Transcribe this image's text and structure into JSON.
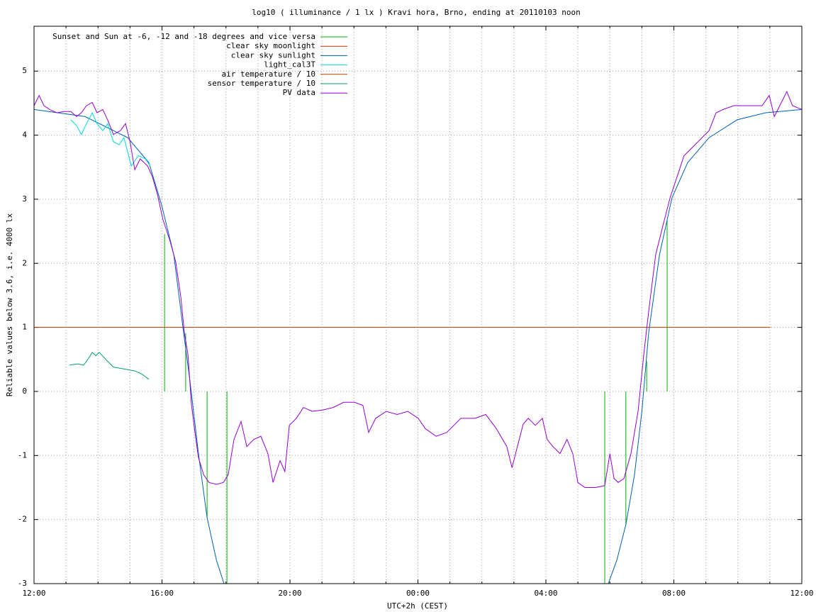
{
  "chart_data": {
    "type": "line",
    "title": "log10 ( illuminance / 1 lx ) Kravi hora, Brno, ending at 20110103 noon",
    "xlabel": "UTC+2h (CEST)",
    "ylabel": "Reliable values below 3.6, i.e. 4000 lx",
    "xlim": [
      0,
      24
    ],
    "ylim": [
      -3,
      5.7
    ],
    "xticks": [
      {
        "value": 0,
        "label": "12:00"
      },
      {
        "value": 4,
        "label": "16:00"
      },
      {
        "value": 8,
        "label": "20:00"
      },
      {
        "value": 12,
        "label": "00:00"
      },
      {
        "value": 16,
        "label": "04:00"
      },
      {
        "value": 20,
        "label": "08:00"
      },
      {
        "value": 24,
        "label": "12:00"
      }
    ],
    "xminorticks": [
      1,
      2,
      3,
      5,
      6,
      7,
      9,
      10,
      11,
      13,
      14,
      15,
      17,
      18,
      19,
      21,
      22,
      23
    ],
    "yticks": [
      -3,
      -2,
      -1,
      0,
      1,
      2,
      3,
      4,
      5
    ],
    "grid": true,
    "legend": "top-left",
    "series": [
      {
        "name": "Sunset and Sun at -6, -12 and -18 degrees and vice versa",
        "color": "#00b000",
        "style": "impulses",
        "x": [
          4.08,
          4.74,
          5.41,
          6.03,
          17.84,
          18.5,
          19.15,
          19.79
        ],
        "values": [
          2.46,
          0.91,
          -1.97,
          -3,
          -3,
          -2.08,
          0.47,
          2.68
        ]
      },
      {
        "name": "clear sky moonlight",
        "color": "#c03000",
        "style": "line",
        "x": [
          0,
          23.02
        ],
        "values": [
          1,
          1
        ]
      },
      {
        "name": "clear sky sunlight",
        "color": "#0060ad",
        "style": "line",
        "x": [
          0,
          1.6,
          2.93,
          3.59,
          3.99,
          4.37,
          4.65,
          4.88,
          5.14,
          5.41,
          5.7,
          5.94,
          12,
          17.95,
          18.22,
          18.5,
          18.77,
          19.0,
          19.21,
          19.55,
          19.94,
          20.43,
          21.1,
          21.98,
          22.87,
          24
        ],
        "values": [
          4.4,
          4.29,
          3.96,
          3.57,
          2.91,
          2.13,
          1.02,
          0.14,
          -0.97,
          -1.97,
          -2.63,
          -3,
          null,
          -3,
          -2.63,
          -2.08,
          -1.3,
          -0.31,
          0.91,
          2.13,
          3.02,
          3.57,
          3.96,
          4.24,
          4.35,
          4.4
        ]
      },
      {
        "name": "light_cal3T",
        "color": "#00dddd",
        "style": "line",
        "x": [
          1.15,
          1.33,
          1.48,
          1.64,
          1.82,
          1.97,
          2.15,
          2.3,
          2.48,
          2.66,
          2.81,
          3.04,
          3.26,
          3.48,
          3.63
        ],
        "values": [
          4.24,
          4.15,
          4.01,
          4.18,
          4.35,
          4.18,
          4.07,
          4.18,
          3.9,
          3.85,
          3.96,
          3.52,
          3.68,
          3.63,
          3.52
        ]
      },
      {
        "name": "air temperature / 10",
        "color": "#c04000",
        "style": "line",
        "x": [],
        "values": []
      },
      {
        "name": "sensor temperature / 10",
        "color": "#00a070",
        "style": "line",
        "x": [
          1.11,
          1.37,
          1.55,
          1.71,
          1.82,
          1.93,
          2.04,
          2.26,
          2.48,
          2.81,
          3.15,
          3.37,
          3.59
        ],
        "values": [
          0.41,
          0.43,
          0.41,
          0.52,
          0.61,
          0.56,
          0.61,
          0.49,
          0.38,
          0.35,
          0.32,
          0.27,
          0.19
        ]
      },
      {
        "name": "PV data",
        "color": "#9400d3",
        "style": "line",
        "x": [
          0,
          0.16,
          0.31,
          0.49,
          0.71,
          0.93,
          1.15,
          1.33,
          1.48,
          1.64,
          1.82,
          1.97,
          2.15,
          2.3,
          2.48,
          2.7,
          2.86,
          3.0,
          3.15,
          3.32,
          3.55,
          3.7,
          3.86,
          4.03,
          4.25,
          4.43,
          4.59,
          4.7,
          4.81,
          4.92,
          5.03,
          5.14,
          5.3,
          5.47,
          5.7,
          5.92,
          6.07,
          6.25,
          6.47,
          6.65,
          6.87,
          7.09,
          7.31,
          7.47,
          7.69,
          7.84,
          7.98,
          8.2,
          8.42,
          8.69,
          9.02,
          9.35,
          9.68,
          10.02,
          10.28,
          10.46,
          10.68,
          11.01,
          11.35,
          11.68,
          12.01,
          12.23,
          12.57,
          12.9,
          13.34,
          13.79,
          14.12,
          14.45,
          14.78,
          14.94,
          15.11,
          15.29,
          15.45,
          15.67,
          15.89,
          16.04,
          16.22,
          16.44,
          16.66,
          16.84,
          17.0,
          17.22,
          17.55,
          17.84,
          18.0,
          18.13,
          18.26,
          18.44,
          18.66,
          18.88,
          19.06,
          19.21,
          19.43,
          19.65,
          19.88,
          20.1,
          20.32,
          20.54,
          20.88,
          21.1,
          21.32,
          21.54,
          21.87,
          22.43,
          22.76,
          22.98,
          23.14,
          23.31,
          23.53,
          23.71,
          24
        ],
        "values": [
          4.46,
          4.62,
          4.46,
          4.4,
          4.35,
          4.37,
          4.37,
          4.29,
          4.35,
          4.46,
          4.51,
          4.35,
          4.4,
          4.24,
          4.01,
          4.07,
          4.18,
          3.9,
          3.46,
          3.63,
          3.52,
          3.35,
          3.07,
          2.68,
          2.35,
          2.02,
          1.47,
          0.91,
          0.58,
          -0.2,
          -0.64,
          -1.03,
          -1.3,
          -1.42,
          -1.45,
          -1.42,
          -1.3,
          -0.75,
          -0.47,
          -0.86,
          -0.75,
          -0.7,
          -0.97,
          -1.42,
          -1.08,
          -1.25,
          -0.53,
          -0.42,
          -0.25,
          -0.31,
          -0.29,
          -0.25,
          -0.17,
          -0.17,
          -0.22,
          -0.64,
          -0.42,
          -0.31,
          -0.36,
          -0.31,
          -0.42,
          -0.58,
          -0.7,
          -0.64,
          -0.42,
          -0.42,
          -0.36,
          -0.58,
          -0.86,
          -1.19,
          -0.86,
          -0.51,
          -0.42,
          -0.53,
          -0.42,
          -0.75,
          -0.86,
          -0.97,
          -0.75,
          -0.97,
          -1.42,
          -1.5,
          -1.5,
          -1.47,
          -0.97,
          -1.36,
          -1.42,
          -1.36,
          -0.97,
          -0.31,
          0.58,
          1.24,
          2.13,
          2.57,
          3.02,
          3.35,
          3.68,
          3.79,
          3.96,
          4.07,
          4.35,
          4.4,
          4.46,
          4.46,
          4.46,
          4.62,
          4.29,
          4.46,
          4.68,
          4.46,
          4.4
        ]
      }
    ]
  }
}
